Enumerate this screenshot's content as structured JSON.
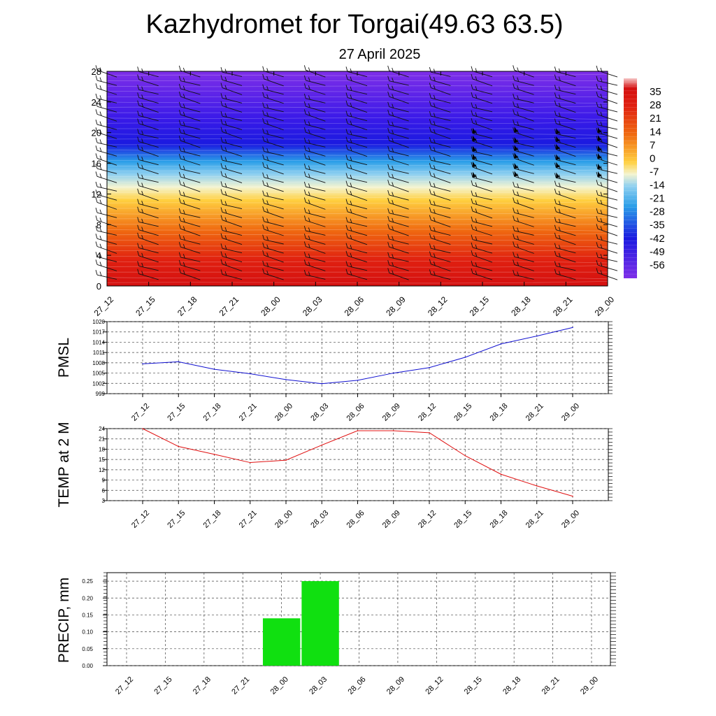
{
  "title": "Kazhydromet for Torgai(49.63 63.5)",
  "subtitle": "27 April 2025",
  "chart_data": [
    {
      "type": "heatmap",
      "name": "temperature-height-section",
      "x_ticks": [
        "27_12",
        "27_15",
        "27_18",
        "27_21",
        "28_00",
        "28_03",
        "28_06",
        "28_09",
        "28_12",
        "28_15",
        "28_18",
        "28_21",
        "29_00"
      ],
      "y_ticks": [
        0,
        4,
        8,
        12,
        16,
        20,
        24,
        28
      ],
      "ylim": [
        0,
        28
      ],
      "colorbar_labels": [
        "35",
        "28",
        "21",
        "14",
        "7",
        "0",
        "-7",
        "-14",
        "-21",
        "-28",
        "-35",
        "-42",
        "-49",
        "-56"
      ],
      "colorbar_range": [
        -63,
        42
      ],
      "wind_barbs": true,
      "colors": {
        "hot": "#d41010",
        "warm": "#f06a10",
        "mild": "#ffd040",
        "cold_edge": "#f4f4d0",
        "cool": "#8fd0f0",
        "cold": "#2a9ee8",
        "very_cold": "#1a1ae0",
        "upper": "#7f2ee8"
      }
    },
    {
      "type": "line",
      "name": "pmsl",
      "ylabel": "PMSL",
      "categories": [
        "27_12",
        "27_15",
        "27_18",
        "27_21",
        "28_00",
        "28_03",
        "28_06",
        "28_09",
        "28_12",
        "28_15",
        "28_18",
        "28_21",
        "29_00"
      ],
      "values": [
        1007.7,
        1008.3,
        1006.1,
        1004.8,
        1003.1,
        1001.9,
        1002.9,
        1005.0,
        1006.6,
        1009.6,
        1013.5,
        1015.8,
        1018.3
      ],
      "y_ticks": [
        "999",
        "1002",
        "1005",
        "1008",
        "1011",
        "1014",
        "1017",
        "1020"
      ],
      "ylim": [
        999,
        1020
      ],
      "grid": true,
      "color": "#1010d0"
    },
    {
      "type": "line",
      "name": "temp-2m",
      "ylabel": "TEMP at 2 M",
      "categories": [
        "27_12",
        "27_15",
        "27_18",
        "27_21",
        "28_00",
        "28_03",
        "28_06",
        "28_09",
        "28_12",
        "28_15",
        "28_18",
        "28_21",
        "29_00"
      ],
      "values": [
        24.0,
        18.8,
        16.5,
        14.1,
        14.8,
        19.2,
        23.4,
        23.4,
        22.8,
        16.1,
        10.7,
        7.3,
        4.3
      ],
      "y_ticks": [
        "3",
        "6",
        "9",
        "12",
        "15",
        "18",
        "21",
        "24"
      ],
      "ylim": [
        3,
        24
      ],
      "grid": true,
      "color": "#e01010"
    },
    {
      "type": "bar",
      "name": "precip",
      "ylabel": "PRECIP, mm",
      "categories": [
        "27_12",
        "27_15",
        "27_18",
        "27_21",
        "28_00",
        "28_03",
        "28_06",
        "28_09",
        "28_12",
        "28_15",
        "28_18",
        "28_21",
        "29_00"
      ],
      "values": [
        0,
        0,
        0,
        0,
        0.14,
        0.25,
        0,
        0,
        0,
        0,
        0,
        0,
        0
      ],
      "y_ticks": [
        "0.00",
        "0.05",
        "0.10",
        "0.15",
        "0.20",
        "0.25"
      ],
      "ylim": [
        0,
        0.275
      ],
      "grid": true,
      "color": "#10e010"
    }
  ]
}
